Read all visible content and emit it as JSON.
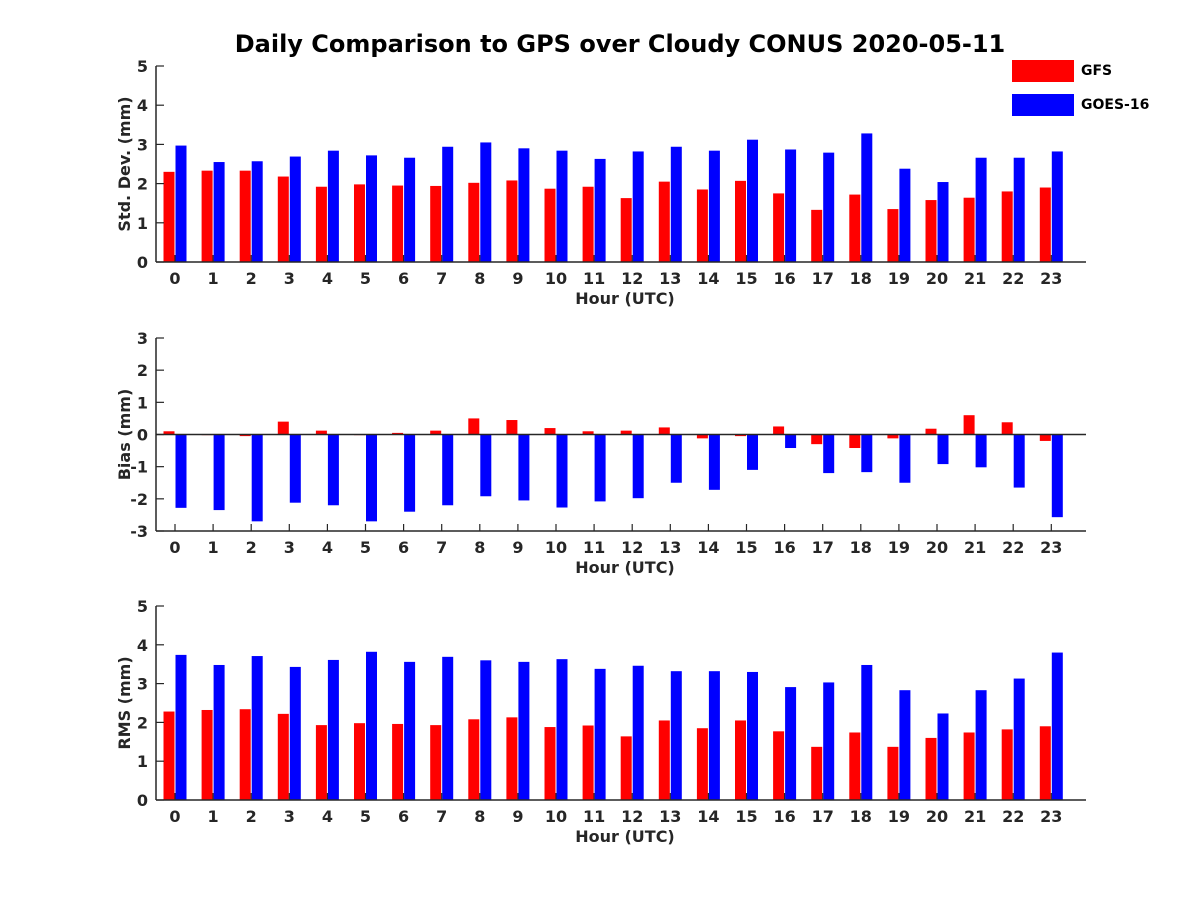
{
  "figure": {
    "title": "Daily Comparison to GPS over Cloudy CONUS 2020-05-11"
  },
  "legend": [
    {
      "name": "GFS",
      "color": "#ff0000"
    },
    {
      "name": "GOES-16",
      "color": "#0000ff"
    }
  ],
  "chart_data": [
    {
      "type": "bar",
      "title": "",
      "xlabel": "Hour (UTC)",
      "ylabel": "Std. Dev. (mm)",
      "ylim": [
        0,
        5
      ],
      "yticks": [
        0,
        1,
        2,
        3,
        4,
        5
      ],
      "categories": [
        "0",
        "1",
        "2",
        "3",
        "4",
        "5",
        "6",
        "7",
        "8",
        "9",
        "10",
        "11",
        "12",
        "13",
        "14",
        "15",
        "16",
        "17",
        "18",
        "19",
        "20",
        "21",
        "22",
        "23"
      ],
      "series": [
        {
          "name": "GFS",
          "color": "#ff0000",
          "values": [
            2.3,
            2.33,
            2.33,
            2.18,
            1.92,
            1.98,
            1.95,
            1.94,
            2.02,
            2.08,
            1.87,
            1.92,
            1.63,
            2.05,
            1.85,
            2.07,
            1.75,
            1.33,
            1.72,
            1.35,
            1.58,
            1.64,
            1.8,
            1.9
          ]
        },
        {
          "name": "GOES-16",
          "color": "#0000ff",
          "values": [
            2.97,
            2.55,
            2.57,
            2.69,
            2.84,
            2.72,
            2.66,
            2.94,
            3.05,
            2.9,
            2.84,
            2.63,
            2.82,
            2.94,
            2.84,
            3.12,
            2.87,
            2.79,
            3.28,
            2.38,
            2.04,
            2.66,
            2.66,
            2.82
          ]
        }
      ]
    },
    {
      "type": "bar",
      "title": "",
      "xlabel": "Hour (UTC)",
      "ylabel": "Bias (mm)",
      "ylim": [
        -3,
        3
      ],
      "yticks": [
        -3,
        -2,
        -1,
        0,
        1,
        2,
        3
      ],
      "categories": [
        "0",
        "1",
        "2",
        "3",
        "4",
        "5",
        "6",
        "7",
        "8",
        "9",
        "10",
        "11",
        "12",
        "13",
        "14",
        "15",
        "16",
        "17",
        "18",
        "19",
        "20",
        "21",
        "22",
        "23"
      ],
      "series": [
        {
          "name": "GFS",
          "color": "#ff0000",
          "values": [
            0.1,
            -0.02,
            -0.05,
            0.4,
            0.12,
            -0.02,
            0.05,
            0.12,
            0.5,
            0.45,
            0.2,
            0.1,
            0.12,
            0.22,
            -0.12,
            -0.05,
            0.25,
            -0.3,
            -0.42,
            -0.12,
            0.18,
            0.6,
            0.38,
            -0.2
          ]
        },
        {
          "name": "GOES-16",
          "color": "#0000ff",
          "values": [
            -2.28,
            -2.35,
            -2.7,
            -2.12,
            -2.2,
            -2.7,
            -2.4,
            -2.2,
            -1.92,
            -2.05,
            -2.27,
            -2.08,
            -1.98,
            -1.5,
            -1.72,
            -1.1,
            -0.42,
            -1.2,
            -1.17,
            -1.5,
            -0.92,
            -1.02,
            -1.65,
            -2.57
          ]
        }
      ]
    },
    {
      "type": "bar",
      "title": "",
      "xlabel": "Hour (UTC)",
      "ylabel": "RMS (mm)",
      "ylim": [
        0,
        5
      ],
      "yticks": [
        0,
        1,
        2,
        3,
        4,
        5
      ],
      "categories": [
        "0",
        "1",
        "2",
        "3",
        "4",
        "5",
        "6",
        "7",
        "8",
        "9",
        "10",
        "11",
        "12",
        "13",
        "14",
        "15",
        "16",
        "17",
        "18",
        "19",
        "20",
        "21",
        "22",
        "23"
      ],
      "series": [
        {
          "name": "GFS",
          "color": "#ff0000",
          "values": [
            2.28,
            2.32,
            2.34,
            2.22,
            1.93,
            1.98,
            1.96,
            1.93,
            2.08,
            2.13,
            1.88,
            1.92,
            1.64,
            2.05,
            1.85,
            2.05,
            1.77,
            1.37,
            1.74,
            1.37,
            1.6,
            1.74,
            1.82,
            1.9
          ]
        },
        {
          "name": "GOES-16",
          "color": "#0000ff",
          "values": [
            3.74,
            3.48,
            3.71,
            3.43,
            3.61,
            3.82,
            3.56,
            3.69,
            3.6,
            3.56,
            3.63,
            3.38,
            3.46,
            3.32,
            3.32,
            3.3,
            2.91,
            3.03,
            3.48,
            2.83,
            2.23,
            2.83,
            3.13,
            3.8
          ]
        }
      ]
    }
  ]
}
